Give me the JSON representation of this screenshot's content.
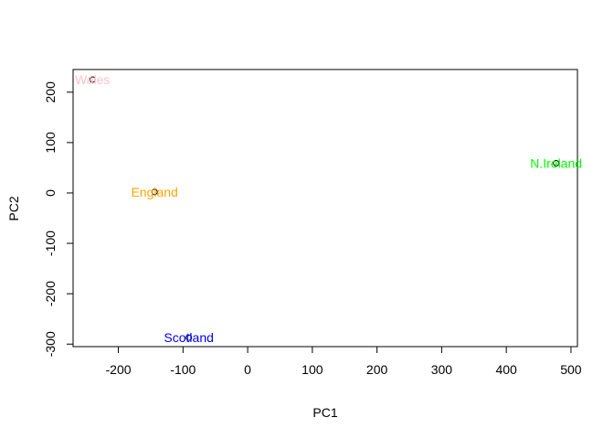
{
  "chart_data": {
    "type": "scatter",
    "title": "",
    "xlabel": "PC1",
    "ylabel": "PC2",
    "xlim": [
      -270,
      510
    ],
    "ylim": [
      -305,
      245
    ],
    "xticks": [
      "-200",
      "-100",
      "0",
      "100",
      "200",
      "300",
      "400",
      "500"
    ],
    "xtick_values": [
      -200,
      -100,
      0,
      100,
      200,
      300,
      400,
      500
    ],
    "yticks": [
      "-300",
      "-200",
      "-100",
      "0",
      "100",
      "200"
    ],
    "ytick_values": [
      -300,
      -200,
      -100,
      0,
      100,
      200
    ],
    "grid": false,
    "legend": "none",
    "points": [
      {
        "label": "England",
        "x": -144,
        "y": 2,
        "color": "#FFA500"
      },
      {
        "label": "Wales",
        "x": -240,
        "y": 225,
        "color": "#FFC0CB"
      },
      {
        "label": "Scotland",
        "x": -91,
        "y": -287,
        "color": "#0000FF"
      },
      {
        "label": "N.Ireland",
        "x": 477,
        "y": 59,
        "color": "#00FF00"
      }
    ]
  }
}
